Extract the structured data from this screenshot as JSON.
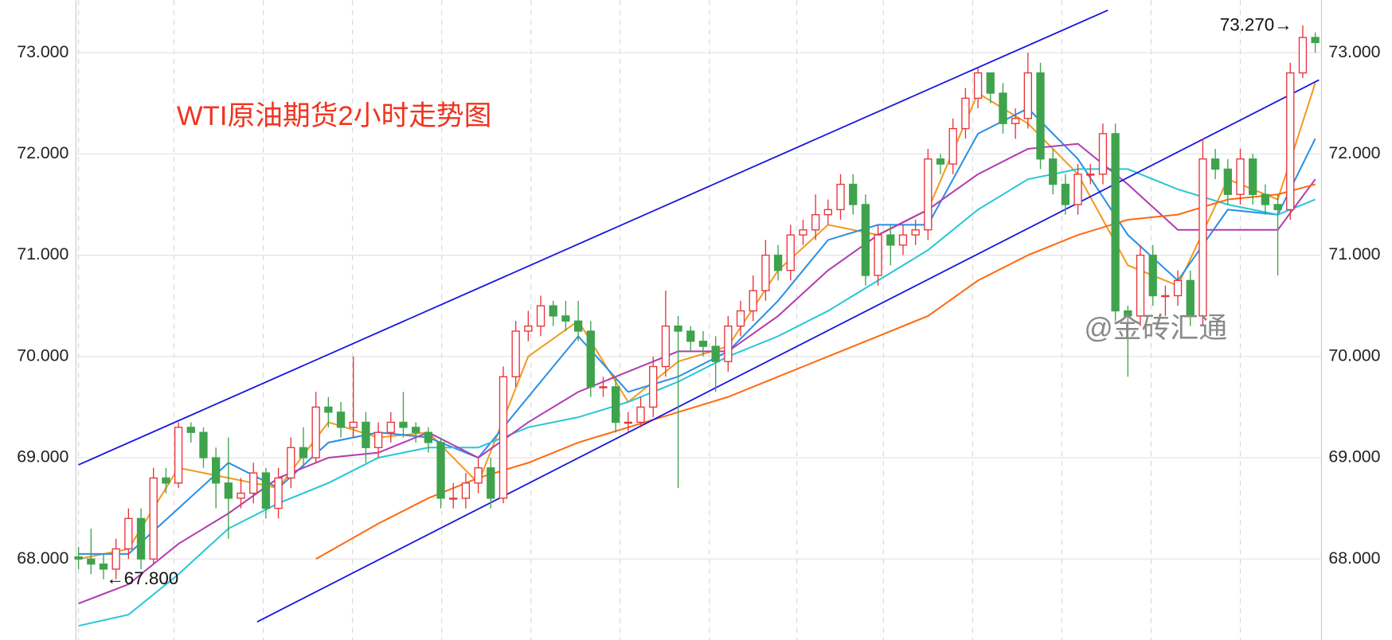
{
  "chart_data": {
    "type": "candlestick",
    "title": "WTI原油期货2小时走势图",
    "watermark": "@金砖汇通",
    "up_color": "#e8333a",
    "down_color": "#3fa34d",
    "ylim": [
      67.2,
      73.52
    ],
    "yticks": [
      {
        "value": 68,
        "label": "68.000"
      },
      {
        "value": 69,
        "label": "69.000"
      },
      {
        "value": 70,
        "label": "70.000"
      },
      {
        "value": 71,
        "label": "71.000"
      },
      {
        "value": 72,
        "label": "72.000"
      },
      {
        "value": 73,
        "label": "73.000"
      }
    ],
    "grid": true,
    "open": [
      68.02,
      68.0,
      67.95,
      67.9,
      68.1,
      68.4,
      68.0,
      68.8,
      68.75,
      69.3,
      69.25,
      69.0,
      68.75,
      68.6,
      68.65,
      68.85,
      68.5,
      68.8,
      69.1,
      69.0,
      69.5,
      69.45,
      69.3,
      69.35,
      69.1,
      69.25,
      69.35,
      69.3,
      69.25,
      69.15,
      68.6,
      68.6,
      68.75,
      68.9,
      68.6,
      69.8,
      70.25,
      70.3,
      70.5,
      70.4,
      70.35,
      70.25,
      69.7,
      69.7,
      69.35,
      69.35,
      69.5,
      69.9,
      70.3,
      70.25,
      70.15,
      70.1,
      69.95,
      70.3,
      70.45,
      70.65,
      71.0,
      70.85,
      71.2,
      71.25,
      71.4,
      71.45,
      71.7,
      71.5,
      70.8,
      71.2,
      71.1,
      71.2,
      71.25,
      71.95,
      71.9,
      72.25,
      72.55,
      72.8,
      72.6,
      72.3,
      72.35,
      72.8,
      71.95,
      71.7,
      71.5,
      71.8,
      71.8,
      72.2,
      70.45,
      70.4,
      71.0,
      70.6,
      70.6,
      70.75,
      70.4,
      71.95,
      71.85,
      71.6,
      71.95,
      71.6,
      71.5,
      71.45,
      72.8,
      73.15
    ],
    "high": [
      68.12,
      68.3,
      68.05,
      68.2,
      68.5,
      68.5,
      68.9,
      68.9,
      69.35,
      69.35,
      69.3,
      69.1,
      69.2,
      68.8,
      68.95,
      68.9,
      68.9,
      69.2,
      69.3,
      69.65,
      69.6,
      69.55,
      70.0,
      69.45,
      69.35,
      69.45,
      69.65,
      69.35,
      69.3,
      69.2,
      68.75,
      68.85,
      69.0,
      69.0,
      69.9,
      70.35,
      70.45,
      70.6,
      70.55,
      70.55,
      70.55,
      70.35,
      69.8,
      69.8,
      69.45,
      69.6,
      70.0,
      70.65,
      70.4,
      70.3,
      70.25,
      70.2,
      70.4,
      70.55,
      70.8,
      71.15,
      71.1,
      71.3,
      71.35,
      71.6,
      71.55,
      71.8,
      71.8,
      71.6,
      71.3,
      71.3,
      71.3,
      71.35,
      72.05,
      72.0,
      72.35,
      72.65,
      72.85,
      72.8,
      72.7,
      72.45,
      73.0,
      72.9,
      72.05,
      71.8,
      71.9,
      71.9,
      72.3,
      72.3,
      70.5,
      71.1,
      71.1,
      70.7,
      70.85,
      70.85,
      72.15,
      72.05,
      71.95,
      72.05,
      72.0,
      71.7,
      71.6,
      72.9,
      73.27,
      73.2
    ],
    "low": [
      67.9,
      67.85,
      67.8,
      67.8,
      68.0,
      67.9,
      67.95,
      68.65,
      68.7,
      69.15,
      68.9,
      68.5,
      68.2,
      68.5,
      68.55,
      68.4,
      68.4,
      68.7,
      68.9,
      68.95,
      69.3,
      69.2,
      69.2,
      68.95,
      69.0,
      69.15,
      69.2,
      69.15,
      69.05,
      68.5,
      68.5,
      68.5,
      68.65,
      68.5,
      68.55,
      69.7,
      70.15,
      70.2,
      70.3,
      70.25,
      70.15,
      69.6,
      69.6,
      69.25,
      69.25,
      69.3,
      69.4,
      69.8,
      68.7,
      70.05,
      70.0,
      69.65,
      69.85,
      70.2,
      70.35,
      70.55,
      70.75,
      70.75,
      71.1,
      71.15,
      71.3,
      71.35,
      71.4,
      70.7,
      70.7,
      70.9,
      71.0,
      71.1,
      71.15,
      71.8,
      71.8,
      72.15,
      72.45,
      72.5,
      72.2,
      72.15,
      72.25,
      71.85,
      71.6,
      71.4,
      71.4,
      71.7,
      71.7,
      70.35,
      69.8,
      70.3,
      70.5,
      70.4,
      70.5,
      70.3,
      70.3,
      71.75,
      71.5,
      71.5,
      71.5,
      71.4,
      70.8,
      71.35,
      72.75,
      73.0
    ],
    "close": [
      68.0,
      67.95,
      67.9,
      68.1,
      68.4,
      68.0,
      68.8,
      68.75,
      69.3,
      69.25,
      69.0,
      68.75,
      68.6,
      68.65,
      68.85,
      68.5,
      68.8,
      69.1,
      69.0,
      69.5,
      69.45,
      69.3,
      69.35,
      69.1,
      69.25,
      69.35,
      69.3,
      69.25,
      69.15,
      68.6,
      68.6,
      68.75,
      68.9,
      68.6,
      69.8,
      70.25,
      70.3,
      70.5,
      70.4,
      70.35,
      70.25,
      69.7,
      69.7,
      69.35,
      69.35,
      69.5,
      69.9,
      70.3,
      70.25,
      70.15,
      70.1,
      69.95,
      70.3,
      70.45,
      70.65,
      71.0,
      70.85,
      71.2,
      71.25,
      71.4,
      71.45,
      71.7,
      71.5,
      70.8,
      71.2,
      71.1,
      71.2,
      71.25,
      71.95,
      71.9,
      72.25,
      72.55,
      72.8,
      72.6,
      72.3,
      72.35,
      72.8,
      71.95,
      71.7,
      71.5,
      71.8,
      71.8,
      72.2,
      70.45,
      70.4,
      71.0,
      70.6,
      70.6,
      70.75,
      70.4,
      71.95,
      71.85,
      71.6,
      71.95,
      71.6,
      71.5,
      71.45,
      72.8,
      73.15,
      73.1
    ],
    "series": [
      {
        "color": "#f39a1e",
        "x": [
          0,
          4,
          8,
          12,
          16,
          20,
          24,
          28,
          32,
          36,
          40,
          44,
          48,
          52,
          56,
          60,
          64,
          68,
          72,
          76,
          80,
          84,
          88,
          92,
          96,
          99
        ],
        "values": [
          68.0,
          68.1,
          68.9,
          68.8,
          68.7,
          69.35,
          69.2,
          69.25,
          68.75,
          70.0,
          70.35,
          69.55,
          69.95,
          70.1,
          70.85,
          71.3,
          71.2,
          71.45,
          72.6,
          72.3,
          71.8,
          70.9,
          70.7,
          71.75,
          71.55,
          72.7
        ]
      },
      {
        "color": "#2a8fe8",
        "x": [
          0,
          4,
          8,
          12,
          16,
          20,
          24,
          28,
          32,
          36,
          40,
          44,
          48,
          52,
          56,
          60,
          64,
          68,
          72,
          76,
          80,
          84,
          88,
          92,
          96,
          99
        ],
        "values": [
          68.05,
          68.05,
          68.5,
          68.95,
          68.7,
          69.15,
          69.25,
          69.2,
          69.0,
          69.6,
          70.2,
          69.65,
          69.8,
          70.05,
          70.55,
          71.15,
          71.3,
          71.3,
          72.2,
          72.45,
          71.95,
          71.2,
          70.75,
          71.45,
          71.4,
          72.15
        ]
      },
      {
        "color": "#27c7d8",
        "x": [
          0,
          4,
          8,
          12,
          16,
          20,
          24,
          28,
          32,
          36,
          40,
          44,
          48,
          52,
          56,
          60,
          64,
          68,
          72,
          76,
          80,
          84,
          88,
          92,
          96,
          99
        ],
        "values": [
          67.34,
          67.45,
          67.85,
          68.3,
          68.55,
          68.75,
          69.0,
          69.1,
          69.1,
          69.3,
          69.4,
          69.55,
          69.75,
          70.0,
          70.2,
          70.45,
          70.75,
          71.05,
          71.45,
          71.75,
          71.85,
          71.85,
          71.65,
          71.5,
          71.4,
          71.55
        ]
      },
      {
        "color": "#b23cb0",
        "x": [
          0,
          4,
          8,
          12,
          16,
          20,
          24,
          28,
          32,
          36,
          40,
          44,
          48,
          52,
          56,
          60,
          64,
          68,
          72,
          76,
          80,
          84,
          88,
          92,
          96,
          99
        ],
        "values": [
          67.56,
          67.75,
          68.15,
          68.45,
          68.8,
          69.0,
          69.05,
          69.25,
          69.0,
          69.35,
          69.65,
          69.85,
          70.05,
          70.05,
          70.4,
          70.85,
          71.2,
          71.45,
          71.8,
          72.05,
          72.1,
          71.7,
          71.25,
          71.25,
          71.25,
          71.75
        ]
      },
      {
        "color": "#ff6a10",
        "x": [
          19,
          24,
          28,
          32,
          36,
          40,
          44,
          48,
          52,
          56,
          60,
          64,
          68,
          72,
          76,
          80,
          84,
          88,
          92,
          96,
          99
        ],
        "values": [
          68.0,
          68.35,
          68.6,
          68.8,
          68.95,
          69.15,
          69.3,
          69.45,
          69.6,
          69.8,
          70.0,
          70.2,
          70.4,
          70.75,
          71.0,
          71.2,
          71.35,
          71.4,
          71.55,
          71.6,
          71.7
        ]
      }
    ],
    "trend_lines": [
      {
        "color": "#1515e0",
        "x": [
          0,
          82.4
        ],
        "values": [
          68.93,
          73.42
        ]
      },
      {
        "color": "#1515e0",
        "x": [
          14.3,
          99.3
        ],
        "values": [
          67.38,
          72.73
        ]
      }
    ],
    "annotations": [
      {
        "text": "73.270→"
      },
      {
        "text": "←67.800"
      }
    ]
  }
}
